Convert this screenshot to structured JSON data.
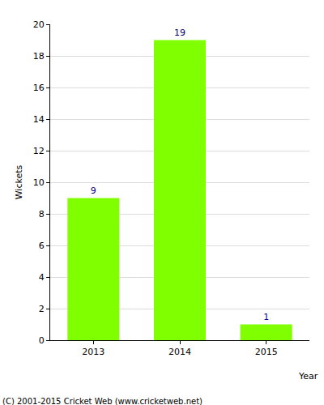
{
  "chart_data": {
    "type": "bar",
    "x_label": "Year",
    "y_label": "Wickets",
    "categories": [
      "2013",
      "2014",
      "2015"
    ],
    "values": [
      9,
      19,
      1
    ],
    "color": "#80ff00",
    "ylim": [
      0,
      20
    ],
    "yticks": [
      0,
      2,
      4,
      6,
      8,
      10,
      12,
      14,
      16,
      18,
      20
    ],
    "grid": true,
    "data_labels": true,
    "annotations": [
      "(C) 2001-2015 Cricket Web (www.cricketweb.net)"
    ]
  }
}
